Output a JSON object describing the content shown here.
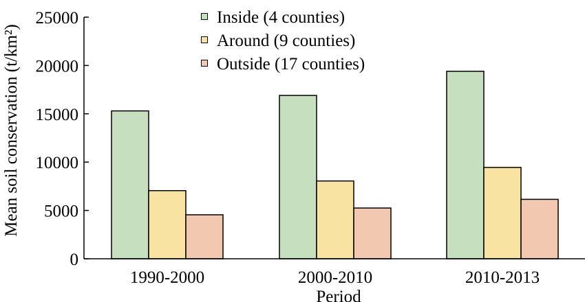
{
  "chart_data": {
    "type": "bar",
    "categories": [
      "1990-2000",
      "2000-2010",
      "2010-2013"
    ],
    "series": [
      {
        "name": "Inside (4 counties)",
        "color": "#c6dfbf",
        "values": [
          15300,
          16900,
          19400
        ]
      },
      {
        "name": "Around (9 counties)",
        "color": "#f8e3a2",
        "values": [
          7050,
          8050,
          9450
        ]
      },
      {
        "name": "Outside (17 counties)",
        "color": "#f2c8b0",
        "values": [
          4550,
          5250,
          6150
        ]
      }
    ],
    "title": "",
    "xlabel": "Period",
    "ylabel": "Mean soil conservation (t/km²)",
    "ylim": [
      0,
      25000
    ],
    "yticks": [
      0,
      5000,
      10000,
      15000,
      20000,
      25000
    ],
    "grid": false,
    "legend_position": "top-center"
  }
}
